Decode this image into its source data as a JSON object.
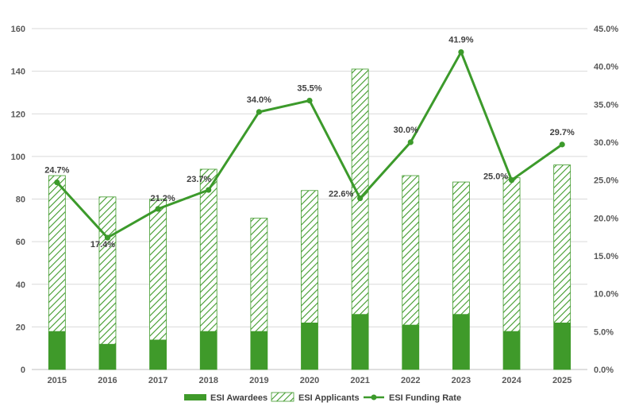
{
  "chart_data": {
    "type": "bar",
    "categories": [
      "2015",
      "2016",
      "2017",
      "2018",
      "2019",
      "2020",
      "2021",
      "2022",
      "2023",
      "2024",
      "2025"
    ],
    "series": [
      {
        "name": "ESI Awardees",
        "type": "bar",
        "axis": "left",
        "values": [
          18,
          12,
          14,
          18,
          18,
          22,
          26,
          21,
          26,
          18,
          22
        ]
      },
      {
        "name": "ESI Applicants",
        "type": "bar",
        "axis": "left",
        "values": [
          91,
          81,
          80,
          94,
          71,
          84,
          141,
          91,
          88,
          90,
          96
        ]
      },
      {
        "name": "ESI Funding Rate",
        "type": "line",
        "axis": "right",
        "values": [
          24.7,
          17.4,
          21.2,
          23.7,
          34.0,
          35.5,
          22.6,
          30.0,
          41.9,
          25.0,
          29.7
        ],
        "labels": [
          "24.7%",
          "17.4%",
          "21.2%",
          "23.7%",
          "34.0%",
          "35.5%",
          "22.6%",
          "30.0%",
          "41.9%",
          "25.0%",
          "29.7%"
        ]
      }
    ],
    "y_left": {
      "ticks": [
        "0",
        "20",
        "40",
        "60",
        "80",
        "100",
        "120",
        "140",
        "160"
      ],
      "lim": [
        0,
        160
      ]
    },
    "y_right": {
      "ticks": [
        "0.0%",
        "5.0%",
        "10.0%",
        "15.0%",
        "20.0%",
        "25.0%",
        "30.0%",
        "35.0%",
        "40.0%",
        "45.0%"
      ],
      "lim": [
        0,
        45
      ]
    },
    "grid": true,
    "legend_position": "bottom",
    "legend": [
      "ESI Awardees",
      "ESI Applicants",
      "ESI Funding Rate"
    ],
    "colors": {
      "green": "#3f9a2a",
      "line": "#3c9a2b",
      "grid": "#d9d9d9",
      "text": "#595959"
    }
  }
}
